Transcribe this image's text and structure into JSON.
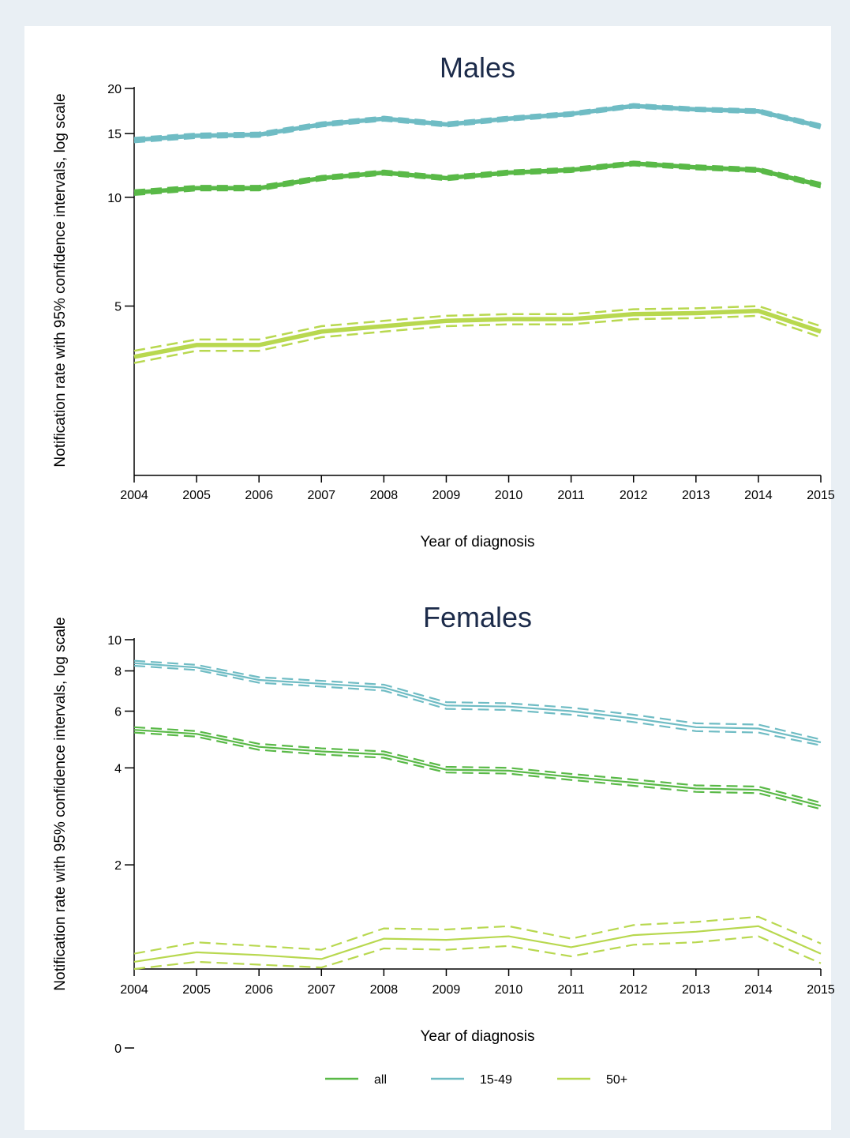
{
  "colors": {
    "background": "#e9eff4",
    "all": "#59b947",
    "15-49": "#6fbcc4",
    "50+": "#b8d84f",
    "title": "#1c2b4a"
  },
  "legend": [
    {
      "key": "all",
      "label": "all"
    },
    {
      "key": "15-49",
      "label": "15-49"
    },
    {
      "key": "50+",
      "label": "50+"
    }
  ],
  "chart_data": [
    {
      "type": "line",
      "title": "Males",
      "xlabel": "Year of diagnosis",
      "ylabel": "Notification rate with 95% confidence intervals, log scale",
      "y_scale": "log",
      "ylim": [
        1.7,
        20
      ],
      "yticks": [
        5,
        10,
        15,
        20
      ],
      "ytick_labels": [
        "5",
        "10",
        "15",
        "20"
      ],
      "x": [
        2004,
        2005,
        2006,
        2007,
        2008,
        2009,
        2010,
        2011,
        2012,
        2013,
        2014,
        2015
      ],
      "grid": false,
      "series": [
        {
          "key": "15-49",
          "values": [
            14.4,
            14.8,
            14.9,
            15.9,
            16.5,
            15.9,
            16.5,
            17.0,
            17.9,
            17.5,
            17.3,
            15.7
          ],
          "lower": [
            14.2,
            14.6,
            14.7,
            15.7,
            16.3,
            15.7,
            16.3,
            16.8,
            17.7,
            17.3,
            17.1,
            15.5
          ],
          "upper": [
            14.6,
            15.0,
            15.1,
            16.1,
            16.7,
            16.1,
            16.7,
            17.2,
            18.1,
            17.7,
            17.5,
            15.9
          ]
        },
        {
          "key": "all",
          "values": [
            10.3,
            10.6,
            10.6,
            11.3,
            11.7,
            11.3,
            11.7,
            11.9,
            12.4,
            12.1,
            11.9,
            10.8
          ],
          "lower": [
            10.15,
            10.45,
            10.45,
            11.15,
            11.55,
            11.15,
            11.55,
            11.75,
            12.25,
            11.95,
            11.75,
            10.65
          ],
          "upper": [
            10.45,
            10.75,
            10.75,
            11.45,
            11.85,
            11.45,
            11.85,
            12.05,
            12.55,
            12.25,
            12.05,
            10.95
          ]
        },
        {
          "key": "50+",
          "values": [
            3.62,
            3.9,
            3.9,
            4.25,
            4.4,
            4.55,
            4.6,
            4.6,
            4.75,
            4.78,
            4.85,
            4.25
          ],
          "lower": [
            3.48,
            3.76,
            3.76,
            4.1,
            4.25,
            4.4,
            4.45,
            4.45,
            4.6,
            4.63,
            4.7,
            4.1
          ],
          "upper": [
            3.76,
            4.04,
            4.04,
            4.4,
            4.55,
            4.7,
            4.75,
            4.75,
            4.9,
            4.93,
            5.0,
            4.4
          ]
        }
      ]
    },
    {
      "type": "line",
      "title": "Females",
      "xlabel": "Year of diagnosis",
      "ylabel": "Notification rate with 95% confidence intervals, log scale",
      "y_scale": "log",
      "ylim": [
        0.95,
        10
      ],
      "yticks": [
        2,
        4,
        6,
        8,
        10
      ],
      "ytick_labels": [
        "2",
        "4",
        "6",
        "8",
        "10"
      ],
      "extra_tick_label": "0",
      "x": [
        2004,
        2005,
        2006,
        2007,
        2008,
        2009,
        2010,
        2011,
        2012,
        2013,
        2014,
        2015
      ],
      "grid": false,
      "series": [
        {
          "key": "15-49",
          "values": [
            8.45,
            8.2,
            7.5,
            7.3,
            7.1,
            6.25,
            6.2,
            6.0,
            5.7,
            5.35,
            5.3,
            4.8
          ],
          "lower": [
            8.3,
            8.05,
            7.35,
            7.15,
            6.95,
            6.1,
            6.05,
            5.85,
            5.55,
            5.2,
            5.15,
            4.7
          ],
          "upper": [
            8.6,
            8.35,
            7.65,
            7.45,
            7.25,
            6.4,
            6.35,
            6.15,
            5.85,
            5.5,
            5.45,
            4.9
          ]
        },
        {
          "key": "all",
          "values": [
            5.25,
            5.1,
            4.65,
            4.5,
            4.4,
            3.95,
            3.92,
            3.75,
            3.6,
            3.45,
            3.42,
            3.05
          ],
          "lower": [
            5.15,
            5.0,
            4.55,
            4.4,
            4.3,
            3.87,
            3.84,
            3.67,
            3.52,
            3.37,
            3.34,
            2.98
          ],
          "upper": [
            5.35,
            5.2,
            4.75,
            4.6,
            4.5,
            4.03,
            4.0,
            3.83,
            3.68,
            3.53,
            3.5,
            3.12
          ]
        },
        {
          "key": "50+",
          "values": [
            1.0,
            1.07,
            1.05,
            1.02,
            1.18,
            1.17,
            1.2,
            1.11,
            1.21,
            1.24,
            1.29,
            1.06
          ],
          "lower": [
            0.95,
            1.0,
            0.98,
            0.96,
            1.1,
            1.09,
            1.12,
            1.04,
            1.13,
            1.15,
            1.2,
            0.99
          ],
          "upper": [
            1.06,
            1.15,
            1.12,
            1.09,
            1.27,
            1.26,
            1.29,
            1.18,
            1.3,
            1.33,
            1.38,
            1.14
          ]
        }
      ]
    }
  ]
}
